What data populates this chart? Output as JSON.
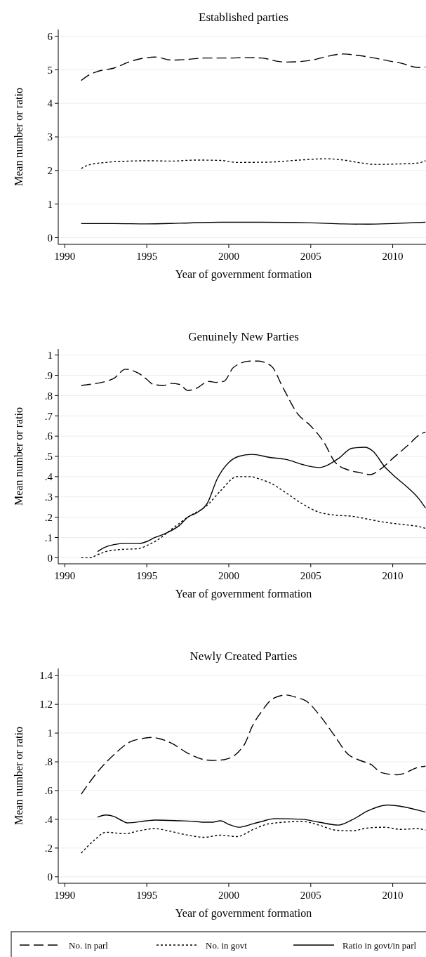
{
  "chart_data": [
    {
      "type": "line",
      "title": "Established parties",
      "xlabel": "Year of government formation",
      "ylabel": "Mean number or ratio",
      "xlim": [
        1989.6,
        2012.2
      ],
      "xticks": [
        1990,
        1995,
        2000,
        2005,
        2010
      ],
      "ylim": [
        -0.2,
        6.2
      ],
      "yticks": [
        0,
        1,
        2,
        3,
        4,
        5,
        6
      ],
      "grid": "y",
      "legend": false,
      "series": [
        {
          "color": "#000000",
          "line_style": "dashed",
          "x": [
            1991,
            1991.5,
            1992,
            1993,
            1994,
            1995,
            1995.5,
            1996.5,
            1997.5,
            1998.5,
            2000,
            2001,
            2002,
            2003,
            2003.5,
            2005,
            2006,
            2007,
            2008,
            2009,
            2010,
            2010.5,
            2011.5,
            2012
          ],
          "values": [
            4.68,
            4.85,
            4.95,
            5.05,
            5.25,
            5.36,
            5.38,
            5.29,
            5.31,
            5.35,
            5.35,
            5.36,
            5.35,
            5.25,
            5.23,
            5.28,
            5.4,
            5.47,
            5.42,
            5.34,
            5.24,
            5.2,
            5.07,
            5.08
          ]
        },
        {
          "color": "#000000",
          "line_style": "dotted",
          "x": [
            1991,
            1991.5,
            1992.5,
            1994,
            1995,
            1996.5,
            1998,
            1999.5,
            2000.5,
            2002.5,
            2004,
            2006,
            2007,
            2008,
            2009,
            2010,
            2011.5,
            2012
          ],
          "values": [
            2.06,
            2.17,
            2.24,
            2.28,
            2.29,
            2.28,
            2.31,
            2.3,
            2.24,
            2.25,
            2.3,
            2.35,
            2.31,
            2.23,
            2.18,
            2.19,
            2.22,
            2.29
          ]
        },
        {
          "color": "#000000",
          "line_style": "solid",
          "x": [
            1991,
            1993,
            1995,
            1997,
            1999.5,
            2002,
            2005,
            2007,
            2008.5,
            2010,
            2012
          ],
          "values": [
            0.42,
            0.42,
            0.41,
            0.43,
            0.46,
            0.46,
            0.44,
            0.41,
            0.4,
            0.42,
            0.46
          ]
        }
      ]
    },
    {
      "type": "line",
      "title": "Genuinely New Parties",
      "xlabel": "Year of government formation",
      "ylabel": "Mean number or ratio",
      "xlim": [
        1989.6,
        2012.2
      ],
      "xticks": [
        1990,
        1995,
        2000,
        2005,
        2010
      ],
      "ylim": [
        -0.03,
        1.03
      ],
      "yticks": [
        0,
        {
          "value": 0.1,
          "label": ".1"
        },
        {
          "value": 0.2,
          "label": ".2"
        },
        {
          "value": 0.3,
          "label": ".3"
        },
        {
          "value": 0.4,
          "label": ".4"
        },
        {
          "value": 0.5,
          "label": ".5"
        },
        {
          "value": 0.6,
          "label": ".6"
        },
        {
          "value": 0.7,
          "label": ".7"
        },
        {
          "value": 0.8,
          "label": ".8"
        },
        {
          "value": 0.9,
          "label": ".9"
        },
        1
      ],
      "grid": "y",
      "legend": false,
      "series": [
        {
          "color": "#000000",
          "line_style": "dashed",
          "x": [
            1991,
            1991.5,
            1992.5,
            1993,
            1993.7,
            1994.5,
            1995,
            1995.4,
            1996,
            1996.5,
            1997,
            1997.5,
            1998,
            1998.8,
            1999.2,
            1999.7,
            2000.3,
            2001.3,
            2001.8,
            2002.6,
            2003.3,
            2004.2,
            2005,
            2005.8,
            2006.5,
            2007.4,
            2008,
            2008.6,
            2009.3,
            2010,
            2011,
            2011.6,
            2012
          ],
          "values": [
            0.85,
            0.855,
            0.87,
            0.885,
            0.93,
            0.91,
            0.88,
            0.855,
            0.85,
            0.86,
            0.855,
            0.825,
            0.835,
            0.87,
            0.865,
            0.87,
            0.94,
            0.97,
            0.97,
            0.945,
            0.84,
            0.71,
            0.65,
            0.57,
            0.47,
            0.43,
            0.42,
            0.41,
            0.44,
            0.49,
            0.56,
            0.605,
            0.62
          ]
        },
        {
          "color": "#000000",
          "line_style": "dotted",
          "x": [
            1991,
            1991.5,
            1992,
            1992.5,
            1993.3,
            1994.5,
            1995,
            1995.7,
            1996.5,
            1997.5,
            1998.7,
            1999.5,
            2000.5,
            2001.3,
            2002,
            2002.5,
            2003.5,
            2004.5,
            2005.5,
            2006.5,
            2007.5,
            2008.5,
            2009.5,
            2010.5,
            2011.5,
            2012
          ],
          "values": [
            0,
            0,
            0.015,
            0.03,
            0.04,
            0.045,
            0.06,
            0.09,
            0.14,
            0.2,
            0.26,
            0.33,
            0.4,
            0.4,
            0.385,
            0.37,
            0.32,
            0.265,
            0.225,
            0.21,
            0.205,
            0.19,
            0.175,
            0.165,
            0.155,
            0.145
          ]
        },
        {
          "color": "#000000",
          "line_style": "solid",
          "x": [
            1992,
            1992.4,
            1993,
            1993.7,
            1994.5,
            1995,
            1995.5,
            1996,
            1997,
            1997.5,
            1998,
            1998.7,
            1999.3,
            2000,
            2000.6,
            2001.4,
            2002.5,
            2003.5,
            2004.5,
            2005,
            2005.5,
            2006.7,
            2007.5,
            2008.3,
            2008.8,
            2009.5,
            2010,
            2011,
            2011.6,
            2012
          ],
          "values": [
            0.03,
            0.05,
            0.065,
            0.07,
            0.07,
            0.08,
            0.1,
            0.115,
            0.16,
            0.2,
            0.22,
            0.27,
            0.39,
            0.47,
            0.5,
            0.51,
            0.495,
            0.485,
            0.46,
            0.45,
            0.445,
            0.49,
            0.54,
            0.545,
            0.525,
            0.45,
            0.41,
            0.34,
            0.29,
            0.245
          ]
        }
      ]
    },
    {
      "type": "line",
      "title": "Newly Created Parties",
      "xlabel": "Year of government formation",
      "ylabel": "Mean number or ratio",
      "xlim": [
        1989.6,
        2012.2
      ],
      "xticks": [
        1990,
        1995,
        2000,
        2005,
        2010
      ],
      "ylim": [
        -0.045,
        1.45
      ],
      "yticks": [
        0,
        {
          "value": 0.2,
          "label": ".2"
        },
        {
          "value": 0.4,
          "label": ".4"
        },
        {
          "value": 0.6,
          "label": ".6"
        },
        {
          "value": 0.8,
          "label": ".8"
        },
        1,
        1.2,
        1.4
      ],
      "grid": "y",
      "legend": "bottom",
      "series": [
        {
          "name": "No. in parl",
          "color": "#000000",
          "line_style": "dashed",
          "x": [
            1991,
            1992,
            1993,
            1994,
            1994.6,
            1995.3,
            1995.8,
            1996.5,
            1997.5,
            1998.5,
            1999,
            1999.7,
            2000.6,
            2001,
            2001.4,
            2002,
            2002.7,
            2003.5,
            2004.2,
            2004.7,
            2005.5,
            2006.4,
            2007.3,
            2008,
            2008.7,
            2009.3,
            2010.3,
            2010.8,
            2011.5,
            2012
          ],
          "values": [
            0.575,
            0.73,
            0.85,
            0.94,
            0.96,
            0.97,
            0.96,
            0.93,
            0.86,
            0.815,
            0.81,
            0.815,
            0.87,
            0.93,
            1.04,
            1.15,
            1.24,
            1.265,
            1.245,
            1.225,
            1.13,
            0.99,
            0.85,
            0.81,
            0.78,
            0.725,
            0.71,
            0.725,
            0.76,
            0.77
          ]
        },
        {
          "name": "No. in govt",
          "color": "#000000",
          "line_style": "dotted",
          "x": [
            1991,
            1991.8,
            1992.5,
            1993.7,
            1994.5,
            1995.5,
            1996.5,
            1997.5,
            1998.5,
            1999.5,
            2000.5,
            2001.5,
            2002.5,
            2004.5,
            2005.5,
            2006.5,
            2007.5,
            2008.5,
            2009.5,
            2010.5,
            2011.5,
            2012
          ],
          "values": [
            0.165,
            0.255,
            0.31,
            0.3,
            0.32,
            0.335,
            0.315,
            0.29,
            0.275,
            0.29,
            0.28,
            0.33,
            0.37,
            0.385,
            0.36,
            0.325,
            0.32,
            0.34,
            0.345,
            0.33,
            0.335,
            0.325
          ]
        },
        {
          "name": "Ratio in govt/in parl",
          "color": "#000000",
          "line_style": "solid",
          "x": [
            1992,
            1992.5,
            1993,
            1993.5,
            1993.8,
            1995,
            1995.5,
            1997,
            1998,
            1998.5,
            1999,
            1999.5,
            2000,
            2000.6,
            2001.5,
            2002,
            2002.8,
            2004.5,
            2005.5,
            2006.7,
            2007.5,
            2008.5,
            2009.2,
            2009.7,
            2010.5,
            2011.5,
            2012
          ],
          "values": [
            0.415,
            0.43,
            0.42,
            0.39,
            0.375,
            0.39,
            0.395,
            0.39,
            0.385,
            0.38,
            0.38,
            0.39,
            0.365,
            0.345,
            0.37,
            0.385,
            0.405,
            0.4,
            0.38,
            0.36,
            0.395,
            0.46,
            0.49,
            0.5,
            0.49,
            0.465,
            0.45
          ]
        }
      ]
    }
  ]
}
